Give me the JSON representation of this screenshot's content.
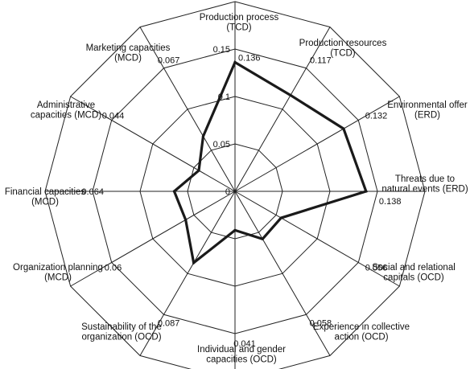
{
  "chart_data": {
    "type": "radar",
    "axes": [
      {
        "label": [
          "Production process",
          "(TCD)"
        ],
        "value": 0.136,
        "value_label": "0.136"
      },
      {
        "label": [
          "Production resources",
          "(TCD)"
        ],
        "value": 0.117,
        "value_label": "0.117"
      },
      {
        "label": [
          "Environmental offer",
          "(ERD)"
        ],
        "value": 0.132,
        "value_label": "0.132"
      },
      {
        "label": [
          "Threats due to",
          "natural events (ERD)"
        ],
        "value": 0.138,
        "value_label": "0.138"
      },
      {
        "label": [
          "Social and relational",
          "capitals (OCD)"
        ],
        "value": 0.056,
        "value_label": "0.056"
      },
      {
        "label": [
          "Experience in collective",
          "action (OCD)"
        ],
        "value": 0.058,
        "value_label": "0.058"
      },
      {
        "label": [
          "Individual and gender",
          "capacities (OCD)"
        ],
        "value": 0.041,
        "value_label": "0.041"
      },
      {
        "label": [
          "Sustainability of the",
          "organization (OCD)"
        ],
        "value": 0.087,
        "value_label": "0.087"
      },
      {
        "label": [
          "Organization planning",
          "(MCD)"
        ],
        "value": 0.06,
        "value_label": "0.06"
      },
      {
        "label": [
          "Financial capacities",
          "(MCD)"
        ],
        "value": 0.064,
        "value_label": "0.064"
      },
      {
        "label": [
          "Administrative",
          "capacities (MCD)"
        ],
        "value": 0.044,
        "value_label": "0.044"
      },
      {
        "label": [
          "Marketing capacities",
          "(MCD)"
        ],
        "value": 0.067,
        "value_label": "0.067"
      }
    ],
    "r_ticks": [
      {
        "value": 0,
        "label": "0"
      },
      {
        "value": 0.05,
        "label": "0.05"
      },
      {
        "value": 0.1,
        "label": "0.1"
      },
      {
        "value": 0.15,
        "label": "0.15"
      }
    ],
    "r_range": [
      0,
      0.2
    ],
    "grid": true,
    "series_color": "#1a1a1a",
    "grid_color": "#222222"
  }
}
